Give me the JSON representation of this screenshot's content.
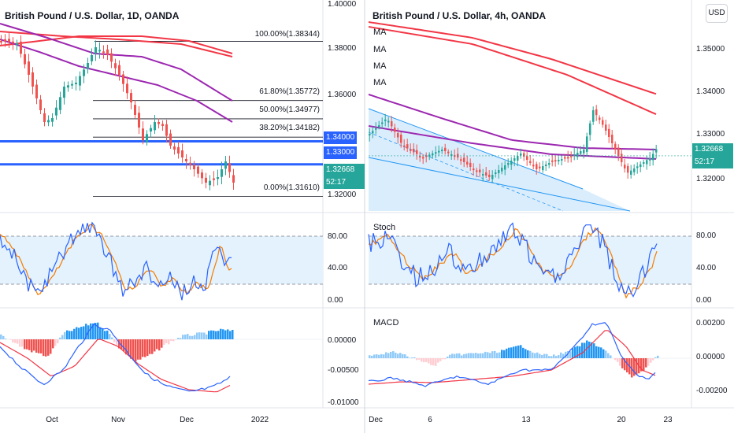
{
  "left": {
    "title": "British Pound / U.S. Dollar, 1D, OANDA",
    "price_ticks": [
      "1.40000",
      "1.38000",
      "1.36000",
      "1.34000",
      "1.33000",
      "1.32668",
      "1.32000"
    ],
    "countdown": "52:17",
    "fib_levels": [
      "100.00%(1.38344)",
      "61.80%(1.35772)",
      "50.00%(1.34977)",
      "38.20%(1.34182)",
      "0.00%(1.31610)"
    ],
    "stoch_ticks": [
      "80.00",
      "40.00",
      "0.00"
    ],
    "macd_ticks": [
      "0.00000",
      "-0.00500",
      "-0.01000"
    ],
    "x_labels": [
      "Oct",
      "Nov",
      "Dec",
      "2022"
    ],
    "hlines": [
      1.34,
      1.33
    ]
  },
  "right": {
    "title": "British Pound / U.S. Dollar, 4h, OANDA",
    "ma_labels": [
      "MA",
      "MA",
      "MA",
      "MA"
    ],
    "price_ticks": [
      "1.35000",
      "1.34000",
      "1.33000",
      "1.32668",
      "1.32000"
    ],
    "countdown": "52:17",
    "stoch_label": "Stoch",
    "stoch_ticks": [
      "80.00",
      "40.00",
      "0.00"
    ],
    "macd_label": "MACD",
    "macd_ticks": [
      "0.00200",
      "0.00000",
      "-0.00200"
    ],
    "x_labels": [
      "Dec",
      "6",
      "13",
      "20",
      "23"
    ],
    "currency_button": "USD"
  },
  "colors": {
    "up": "#26a69a",
    "down": "#ef5350",
    "ma_purple": "#9c27b0",
    "ma_red": "#f23645",
    "hline_blue": "#2962ff",
    "stoch_k": "#2962ff",
    "stoch_d": "#f57c00",
    "band_fill": "#e3f2fd"
  }
}
